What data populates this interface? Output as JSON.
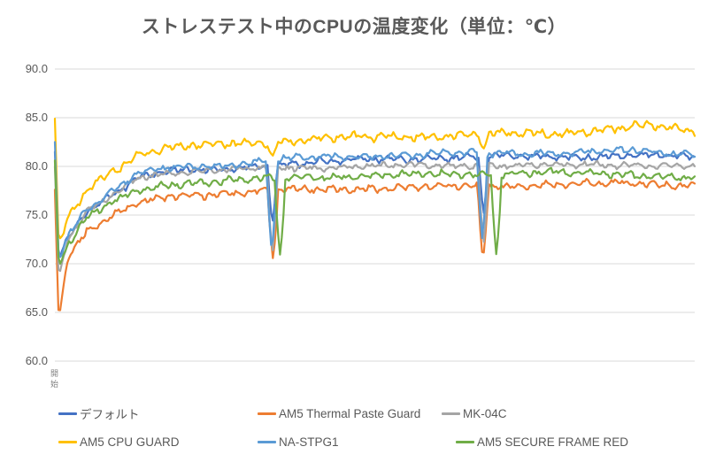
{
  "chart_data": {
    "type": "line",
    "title": "ストレステスト中のCPUの温度変化（単位：℃）",
    "grid": true,
    "legend_position": "bottom",
    "y_axis": {
      "min": 60,
      "max": 90,
      "step": 5,
      "tick_labels": [
        "90.0",
        "85.0",
        "80.0",
        "75.0",
        "70.0",
        "65.0",
        "60.0"
      ],
      "gridline_color": "#D9D9D9"
    },
    "x_axis": {
      "first_label": "開始",
      "orientation": "vertical"
    },
    "series": [
      {
        "name": "デフォルト",
        "color": "#4472C4",
        "noise": 0.4,
        "keypoints": [
          [
            0,
            81.5
          ],
          [
            0.006,
            70.3
          ],
          [
            0.02,
            72.6
          ],
          [
            0.05,
            75.4
          ],
          [
            0.09,
            77.2
          ],
          [
            0.13,
            78.9
          ],
          [
            0.18,
            79.5
          ],
          [
            0.25,
            79.6
          ],
          [
            0.32,
            80.1
          ],
          [
            0.4,
            80.4
          ],
          [
            0.5,
            80.7
          ],
          [
            0.6,
            80.9
          ],
          [
            0.7,
            81.0
          ],
          [
            0.8,
            81.0
          ],
          [
            0.9,
            81.1
          ],
          [
            1,
            81.0
          ]
        ],
        "dips": [
          {
            "t": 0.34,
            "temp": 74.0,
            "w": 0.007
          },
          {
            "t": 0.67,
            "temp": 75.0,
            "w": 0.007
          }
        ]
      },
      {
        "name": "AM5 Thermal Paste Guard",
        "color": "#ED7D31",
        "noise": 0.42,
        "keypoints": [
          [
            0,
            77.6
          ],
          [
            0.006,
            64.3
          ],
          [
            0.02,
            70.6
          ],
          [
            0.05,
            73.4
          ],
          [
            0.09,
            74.9
          ],
          [
            0.13,
            76.2
          ],
          [
            0.18,
            76.9
          ],
          [
            0.25,
            77.2
          ],
          [
            0.32,
            77.5
          ],
          [
            0.4,
            77.6
          ],
          [
            0.5,
            77.8
          ],
          [
            0.6,
            77.9
          ],
          [
            0.7,
            78.0
          ],
          [
            0.8,
            78.2
          ],
          [
            0.9,
            78.2
          ],
          [
            1,
            78.1
          ]
        ],
        "dips": [
          {
            "t": 0.341,
            "temp": 70.4,
            "w": 0.008
          },
          {
            "t": 0.669,
            "temp": 70.2,
            "w": 0.008
          }
        ]
      },
      {
        "name": "MK-04C",
        "color": "#A5A5A5",
        "noise": 0.34,
        "keypoints": [
          [
            0,
            80.0
          ],
          [
            0.006,
            68.3
          ],
          [
            0.02,
            72.4
          ],
          [
            0.05,
            75.3
          ],
          [
            0.09,
            77.0
          ],
          [
            0.13,
            78.9
          ],
          [
            0.18,
            79.4
          ],
          [
            0.25,
            79.6
          ],
          [
            0.32,
            79.8
          ],
          [
            0.4,
            79.9
          ],
          [
            0.5,
            80.0
          ],
          [
            0.6,
            80.1
          ],
          [
            0.7,
            80.1
          ],
          [
            0.8,
            80.1
          ],
          [
            0.9,
            80.2
          ],
          [
            1,
            80.0
          ]
        ],
        "dips": [
          {
            "t": 0.34,
            "temp": 70.8,
            "w": 0.008
          },
          {
            "t": 0.67,
            "temp": 72.0,
            "w": 0.008
          }
        ]
      },
      {
        "name": "AM5 CPU GUARD",
        "color": "#FFC000",
        "noise": 0.5,
        "keypoints": [
          [
            0,
            84.9
          ],
          [
            0.006,
            71.8
          ],
          [
            0.02,
            74.6
          ],
          [
            0.05,
            77.6
          ],
          [
            0.09,
            79.6
          ],
          [
            0.13,
            81.2
          ],
          [
            0.18,
            81.9
          ],
          [
            0.25,
            82.2
          ],
          [
            0.32,
            82.5
          ],
          [
            0.4,
            82.8
          ],
          [
            0.5,
            83.0
          ],
          [
            0.6,
            83.2
          ],
          [
            0.7,
            83.3
          ],
          [
            0.8,
            83.4
          ],
          [
            0.88,
            84.0
          ],
          [
            0.93,
            84.2
          ],
          [
            1,
            83.5
          ]
        ],
        "dips": [
          {
            "t": 0.34,
            "temp": 81.0,
            "w": 0.008
          },
          {
            "t": 0.67,
            "temp": 81.8,
            "w": 0.008
          }
        ]
      },
      {
        "name": "NA-STPG1",
        "color": "#5B9BD5",
        "noise": 0.42,
        "keypoints": [
          [
            0,
            82.5
          ],
          [
            0.006,
            70.7
          ],
          [
            0.02,
            72.8
          ],
          [
            0.05,
            75.7
          ],
          [
            0.09,
            77.4
          ],
          [
            0.13,
            79.2
          ],
          [
            0.18,
            79.9
          ],
          [
            0.25,
            80.1
          ],
          [
            0.32,
            80.5
          ],
          [
            0.4,
            80.9
          ],
          [
            0.5,
            81.1
          ],
          [
            0.6,
            81.3
          ],
          [
            0.7,
            81.4
          ],
          [
            0.8,
            81.4
          ],
          [
            0.9,
            81.6
          ],
          [
            1,
            81.3
          ]
        ],
        "dips": [
          {
            "t": 0.339,
            "temp": 71.0,
            "w": 0.008
          },
          {
            "t": 0.668,
            "temp": 72.3,
            "w": 0.008
          }
        ]
      },
      {
        "name": "AM5 SECURE FRAME RED",
        "color": "#70AD47",
        "noise": 0.42,
        "keypoints": [
          [
            0,
            80.6
          ],
          [
            0.006,
            69.9
          ],
          [
            0.02,
            71.9
          ],
          [
            0.05,
            74.7
          ],
          [
            0.09,
            76.3
          ],
          [
            0.13,
            77.5
          ],
          [
            0.18,
            78.2
          ],
          [
            0.25,
            78.4
          ],
          [
            0.32,
            78.7
          ],
          [
            0.4,
            78.9
          ],
          [
            0.5,
            79.0
          ],
          [
            0.6,
            79.2
          ],
          [
            0.7,
            79.3
          ],
          [
            0.8,
            79.3
          ],
          [
            0.9,
            79.2
          ],
          [
            1,
            78.8
          ]
        ],
        "dips": [
          {
            "t": 0.352,
            "temp": 70.8,
            "w": 0.008
          },
          {
            "t": 0.69,
            "temp": 70.8,
            "w": 0.008
          }
        ]
      }
    ]
  }
}
